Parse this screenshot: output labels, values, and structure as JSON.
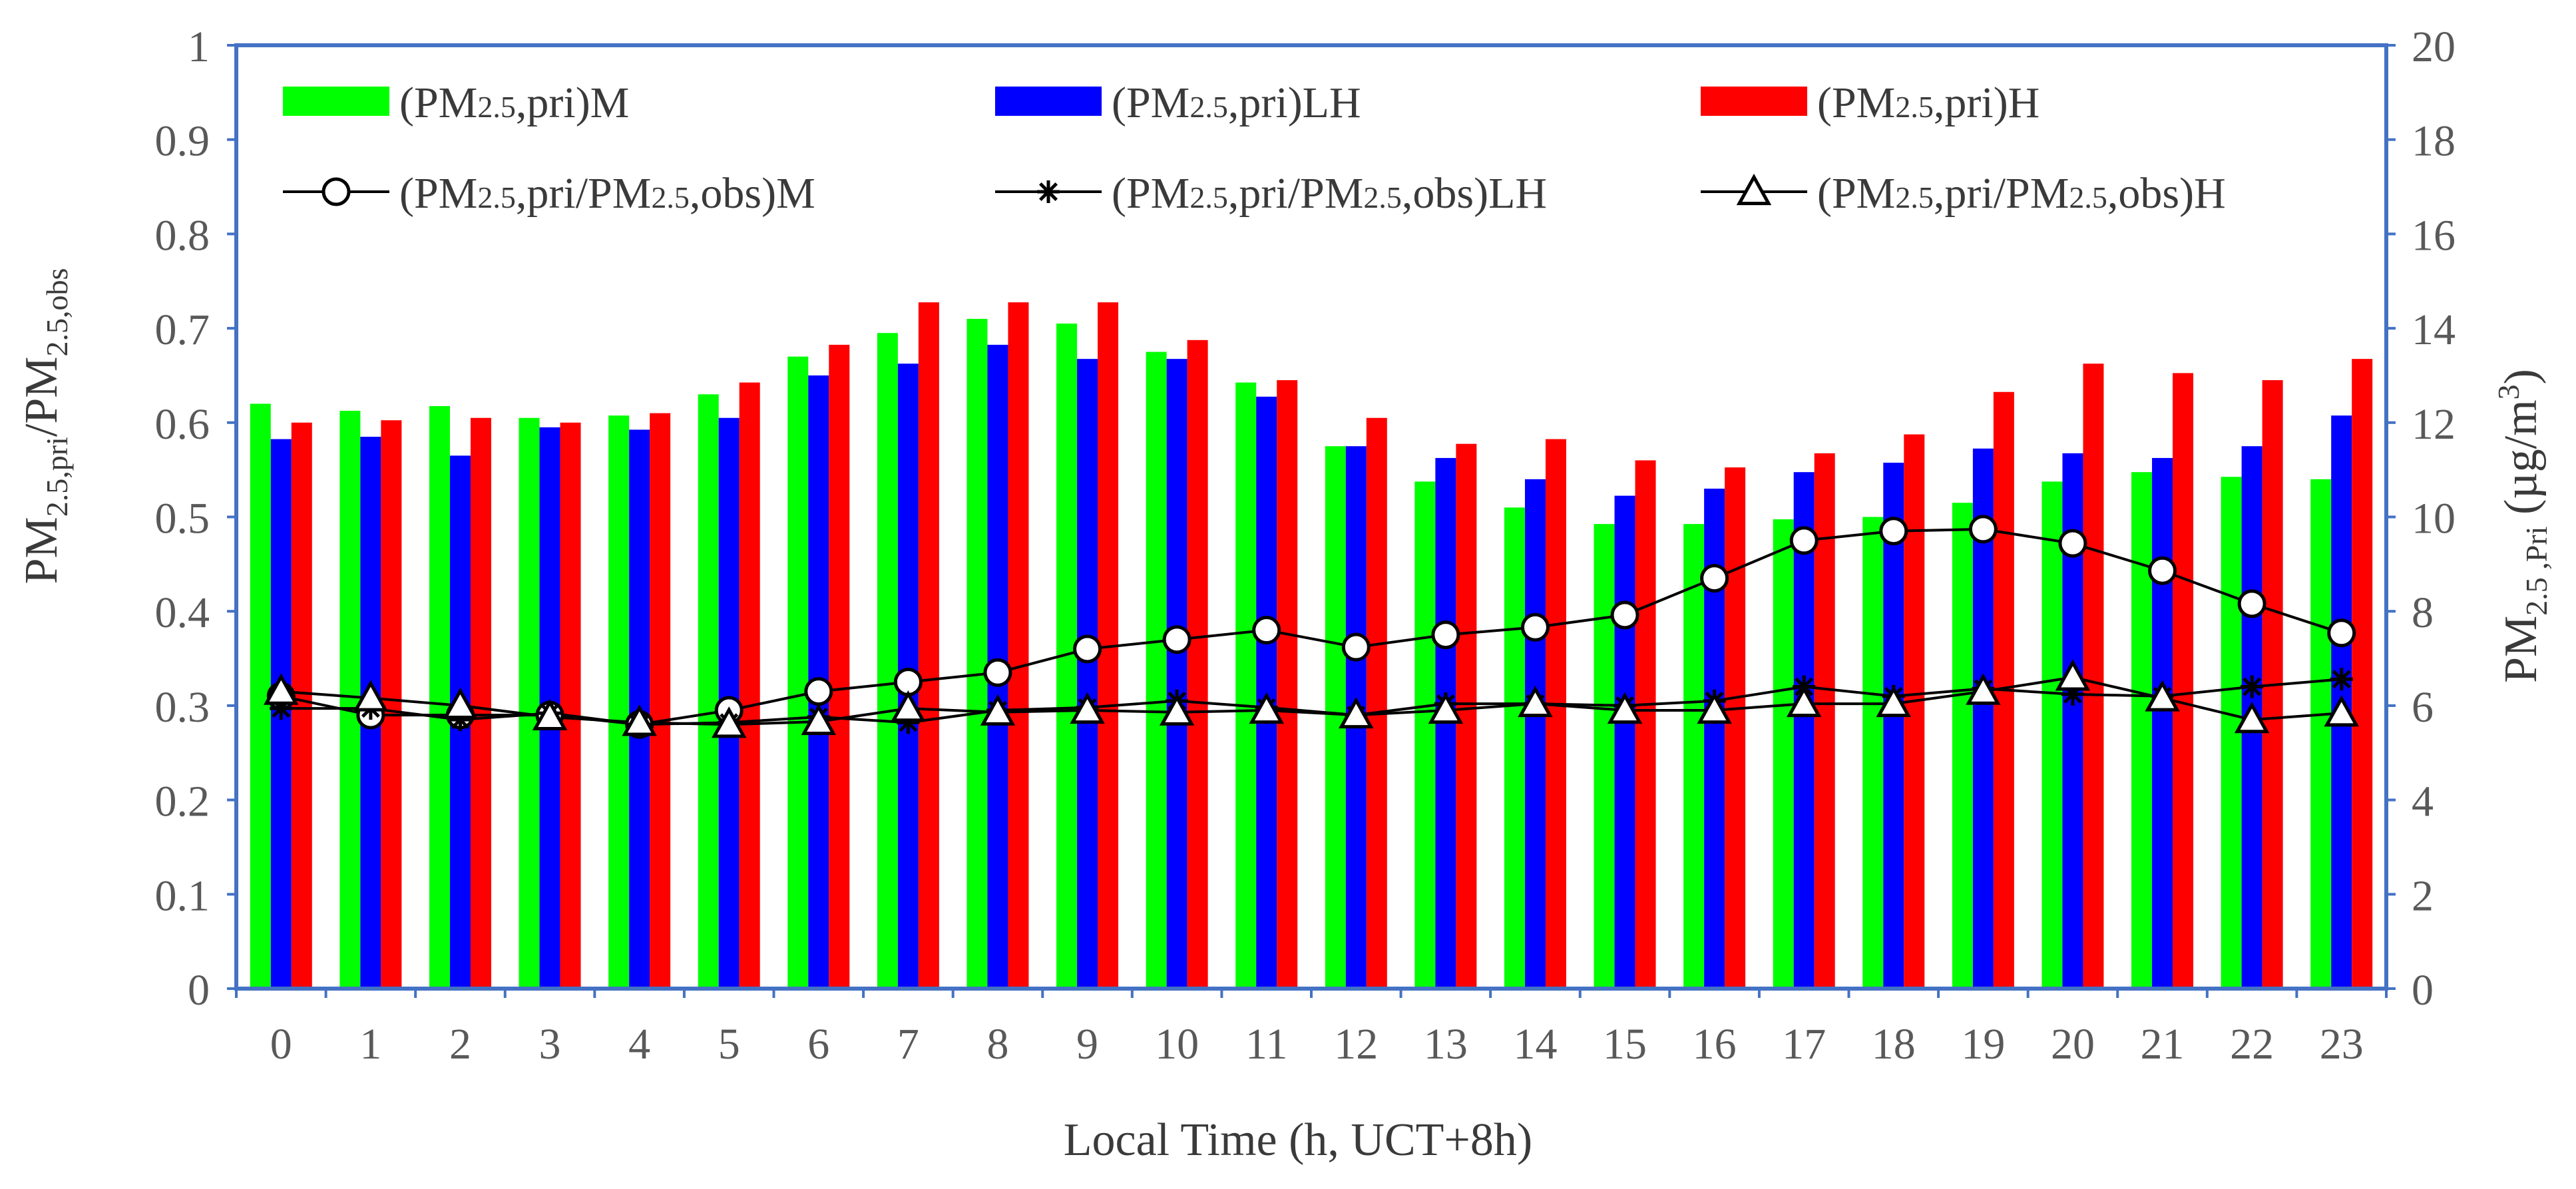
{
  "chart_data": {
    "type": "bar+line",
    "title": "",
    "xlabel": "Local Time (h, UCT+8h)",
    "ylabel_left": {
      "main": "PM",
      "sub1": "2.5,pri",
      "mid": "/PM",
      "sub2": "2.5,obs"
    },
    "ylabel_right": {
      "main": "PM",
      "sub": "2.5 ,Pri",
      "tail": " (µg/m",
      "sup": "3",
      "close": ")"
    },
    "categories": [
      "0",
      "1",
      "2",
      "3",
      "4",
      "5",
      "6",
      "7",
      "8",
      "9",
      "10",
      "11",
      "12",
      "13",
      "14",
      "15",
      "16",
      "17",
      "18",
      "19",
      "20",
      "21",
      "22",
      "23"
    ],
    "y_left": {
      "min": 0,
      "max": 1,
      "ticks": [
        "0",
        "0.1",
        "0.2",
        "0.3",
        "0.4",
        "0.5",
        "0.6",
        "0.7",
        "0.8",
        "0.9",
        "1"
      ]
    },
    "y_right": {
      "min": 0,
      "max": 20,
      "ticks": [
        "0",
        "2",
        "4",
        "6",
        "8",
        "10",
        "12",
        "14",
        "16",
        "18",
        "20"
      ]
    },
    "bar_series": [
      {
        "name": "(PM2.5,pri)M",
        "color": "#00ff00",
        "axis": "right",
        "values": [
          12.4,
          12.25,
          12.35,
          12.1,
          12.15,
          12.6,
          13.4,
          13.9,
          14.2,
          14.1,
          13.5,
          12.85,
          11.5,
          10.75,
          10.2,
          9.85,
          9.85,
          9.95,
          10.0,
          10.3,
          10.75,
          10.95,
          10.85,
          10.8
        ]
      },
      {
        "name": "(PM2.5,pri)LH",
        "color": "#0000ff",
        "axis": "right",
        "values": [
          11.65,
          11.7,
          11.3,
          11.9,
          11.85,
          12.1,
          13.0,
          13.25,
          13.65,
          13.35,
          13.35,
          12.55,
          11.5,
          11.25,
          10.8,
          10.45,
          10.6,
          10.95,
          11.15,
          11.45,
          11.35,
          11.25,
          11.5,
          12.15
        ]
      },
      {
        "name": "(PM2.5,pri)H",
        "color": "#ff0000",
        "axis": "right",
        "values": [
          12.0,
          12.05,
          12.1,
          12.0,
          12.2,
          12.85,
          13.65,
          14.55,
          14.55,
          14.55,
          13.75,
          12.9,
          12.1,
          11.55,
          11.65,
          11.2,
          11.05,
          11.35,
          11.75,
          12.65,
          13.25,
          13.05,
          12.9,
          13.35
        ]
      }
    ],
    "line_series": [
      {
        "name": "(PM2.5,pri/PM2.5,obs)M",
        "marker": "circle",
        "axis": "left",
        "values": [
          0.31,
          0.29,
          0.29,
          0.29,
          0.28,
          0.295,
          0.315,
          0.325,
          0.335,
          0.36,
          0.37,
          0.38,
          0.362,
          0.375,
          0.383,
          0.396,
          0.435,
          0.475,
          0.485,
          0.487,
          0.472,
          0.443,
          0.408,
          0.377
        ]
      },
      {
        "name": "(PM2.5,pri/PM2.5,obs)LH",
        "marker": "star",
        "axis": "left",
        "values": [
          0.297,
          0.297,
          0.285,
          0.292,
          0.28,
          0.282,
          0.288,
          0.282,
          0.295,
          0.298,
          0.305,
          0.298,
          0.29,
          0.302,
          0.302,
          0.3,
          0.305,
          0.32,
          0.31,
          0.318,
          0.312,
          0.31,
          0.32,
          0.328
        ]
      },
      {
        "name": "(PM2.5,pri/PM2.5,obs)H",
        "marker": "triangle",
        "axis": "left",
        "values": [
          0.315,
          0.308,
          0.3,
          0.288,
          0.282,
          0.28,
          0.283,
          0.297,
          0.293,
          0.295,
          0.293,
          0.295,
          0.29,
          0.295,
          0.302,
          0.295,
          0.295,
          0.302,
          0.302,
          0.315,
          0.33,
          0.308,
          0.285,
          0.292
        ]
      }
    ],
    "legend": {
      "bars": [
        {
          "label": "(PM",
          "sub": "2.5",
          "label2": ",pri)M"
        },
        {
          "label": "(PM",
          "sub": "2.5",
          "label2": ",pri)LH"
        },
        {
          "label": "(PM",
          "sub": "2.5",
          "label2": ",pri)H"
        }
      ],
      "lines": [
        {
          "label": "(PM",
          "sub": "2.5",
          "label2": ",pri/PM",
          "sub2": "2.5",
          "label3": ",obs)M"
        },
        {
          "label": "(PM",
          "sub": "2.5",
          "label2": ",pri/PM",
          "sub2": "2.5",
          "label3": ",obs)LH"
        },
        {
          "label": "(PM",
          "sub": "2.5",
          "label2": ",pri/PM",
          "sub2": "2.5",
          "label3": ",obs)H"
        }
      ],
      "placement": "top"
    },
    "frame_color": "#4472c4",
    "grid": false
  }
}
